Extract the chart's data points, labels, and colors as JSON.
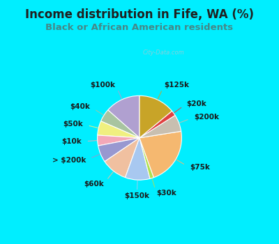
{
  "title": "Income distribution in Fife, WA (%)",
  "subtitle": "Black or African American residents",
  "labels": [
    "$100k",
    "$40k",
    "$50k",
    "$10k",
    "> $200k",
    "$60k",
    "$150k",
    "$30k",
    "$75k",
    "$200k",
    "$20k",
    "$125k"
  ],
  "sizes": [
    13.5,
    5.0,
    5.5,
    4.0,
    6.5,
    10.0,
    9.5,
    1.5,
    22.0,
    6.5,
    2.0,
    14.0
  ],
  "colors": [
    "#b0a0d0",
    "#a8c4a0",
    "#f0f080",
    "#f4a8b8",
    "#9898d0",
    "#f0c0a0",
    "#a8c8f0",
    "#b0e050",
    "#f5b870",
    "#c8bfb0",
    "#e04040",
    "#c8a428"
  ],
  "bg_color": "#00eeff",
  "chart_bg_left": "#c8eec8",
  "chart_bg_right": "#e8f8f8",
  "startangle": 90,
  "title_color": "#202020",
  "subtitle_color": "#448888",
  "label_fontsize": 7.5,
  "title_fontsize": 12,
  "subtitle_fontsize": 9.5,
  "watermark": "City-Data.com",
  "watermark_color": "#b0c8d0"
}
